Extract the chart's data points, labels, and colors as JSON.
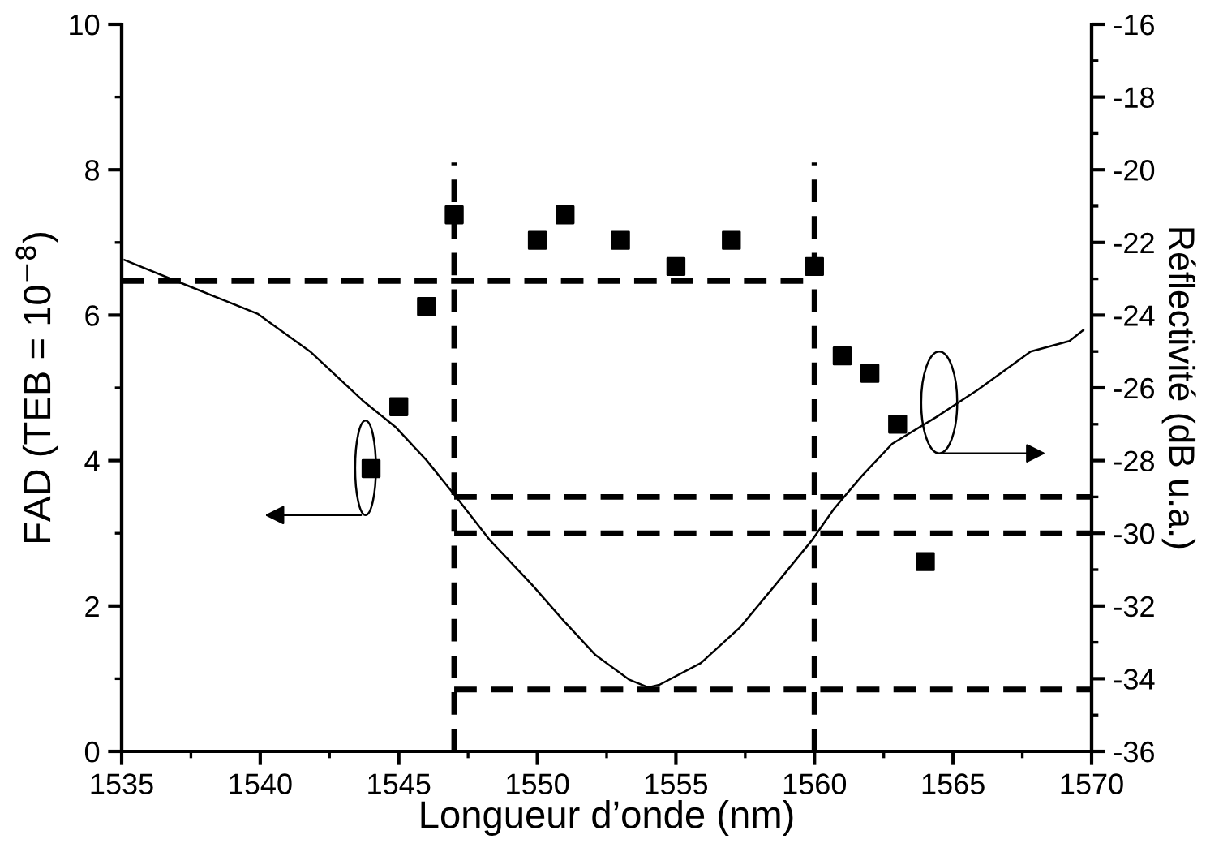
{
  "chart_data": {
    "type": "scatter",
    "xlabel": "Longueur d’onde (nm)",
    "ylabel": "FAD (TEB = 10$^{−8}$)",
    "y2label": "Réflectivité (dB u.a.)",
    "xlim": [
      1535,
      1570
    ],
    "xticks": [
      1535,
      1540,
      1545,
      1550,
      1555,
      1560,
      1565,
      1570
    ],
    "ylim": [
      0,
      10
    ],
    "yticks": [
      0,
      2,
      4,
      6,
      8,
      10
    ],
    "y2lim": [
      -36,
      -16
    ],
    "y2ticks": [
      -36,
      -34,
      -32,
      -30,
      -28,
      -26,
      -24,
      -22,
      -20,
      -18,
      -16
    ],
    "grid": false,
    "series": [
      {
        "marker": "square",
        "color": "#000000",
        "x": [
          1544,
          1545,
          1546,
          1547,
          1550,
          1551,
          1553,
          1555,
          1557,
          1560,
          1561,
          1562,
          1563,
          1564
        ],
        "values": [
          3.89,
          4.74,
          6.12,
          7.38,
          7.03,
          7.38,
          7.03,
          6.67,
          7.03,
          6.67,
          5.44,
          5.2,
          4.5,
          2.61
        ]
      },
      {
        "type": "line",
        "axis": "y2",
        "marker": "none",
        "line_style": "solid",
        "color": "#000000",
        "x": [
          1535.1,
          1537,
          1539.9,
          1541.8,
          1543.7,
          1544.9,
          1546,
          1547.1,
          1548.3,
          1549.8,
          1551,
          1552.1,
          1553.3,
          1554,
          1554.4,
          1555.9,
          1557.3,
          1558.6,
          1559.9,
          1560.7,
          1561.7,
          1562.8,
          1564.4,
          1565.9,
          1567.8,
          1569.2,
          1569.7
        ],
        "values": [
          -22.48,
          -23.07,
          -23.96,
          -25.0,
          -26.35,
          -27.09,
          -27.99,
          -29.03,
          -30.2,
          -31.41,
          -32.45,
          -33.35,
          -34.02,
          -34.24,
          -34.17,
          -33.57,
          -32.6,
          -31.41,
          -30.2,
          -29.33,
          -28.43,
          -27.54,
          -26.8,
          -26.05,
          -25.0,
          -24.71,
          -24.41
        ]
      },
      {
        "type": "line",
        "marker": "none",
        "line_style": "dashed",
        "color": "#000000",
        "x": [
          1535,
          1547,
          1560
        ],
        "values": [
          6.47,
          6.47,
          6.47
        ]
      },
      {
        "type": "line",
        "marker": "none",
        "line_style": "dashed",
        "color": "#000000",
        "x": [
          1547,
          1547
        ],
        "values": [
          0,
          8.1
        ]
      },
      {
        "type": "line",
        "marker": "none",
        "line_style": "dashed",
        "color": "#000000",
        "x": [
          1560,
          1560
        ],
        "values": [
          0,
          8.1
        ]
      },
      {
        "type": "line",
        "axis": "y2",
        "marker": "none",
        "line_style": "dashed",
        "color": "#000000",
        "x": [
          1547,
          1570
        ],
        "values": [
          -29,
          -29
        ]
      },
      {
        "type": "line",
        "axis": "y2",
        "marker": "none",
        "line_style": "dashed",
        "color": "#000000",
        "x": [
          1547,
          1570
        ],
        "values": [
          -30,
          -30
        ]
      },
      {
        "type": "line",
        "axis": "y2",
        "marker": "none",
        "line_style": "dashed",
        "color": "#000000",
        "x": [
          1547,
          1570
        ],
        "values": [
          -34.3,
          -34.3
        ]
      }
    ]
  }
}
